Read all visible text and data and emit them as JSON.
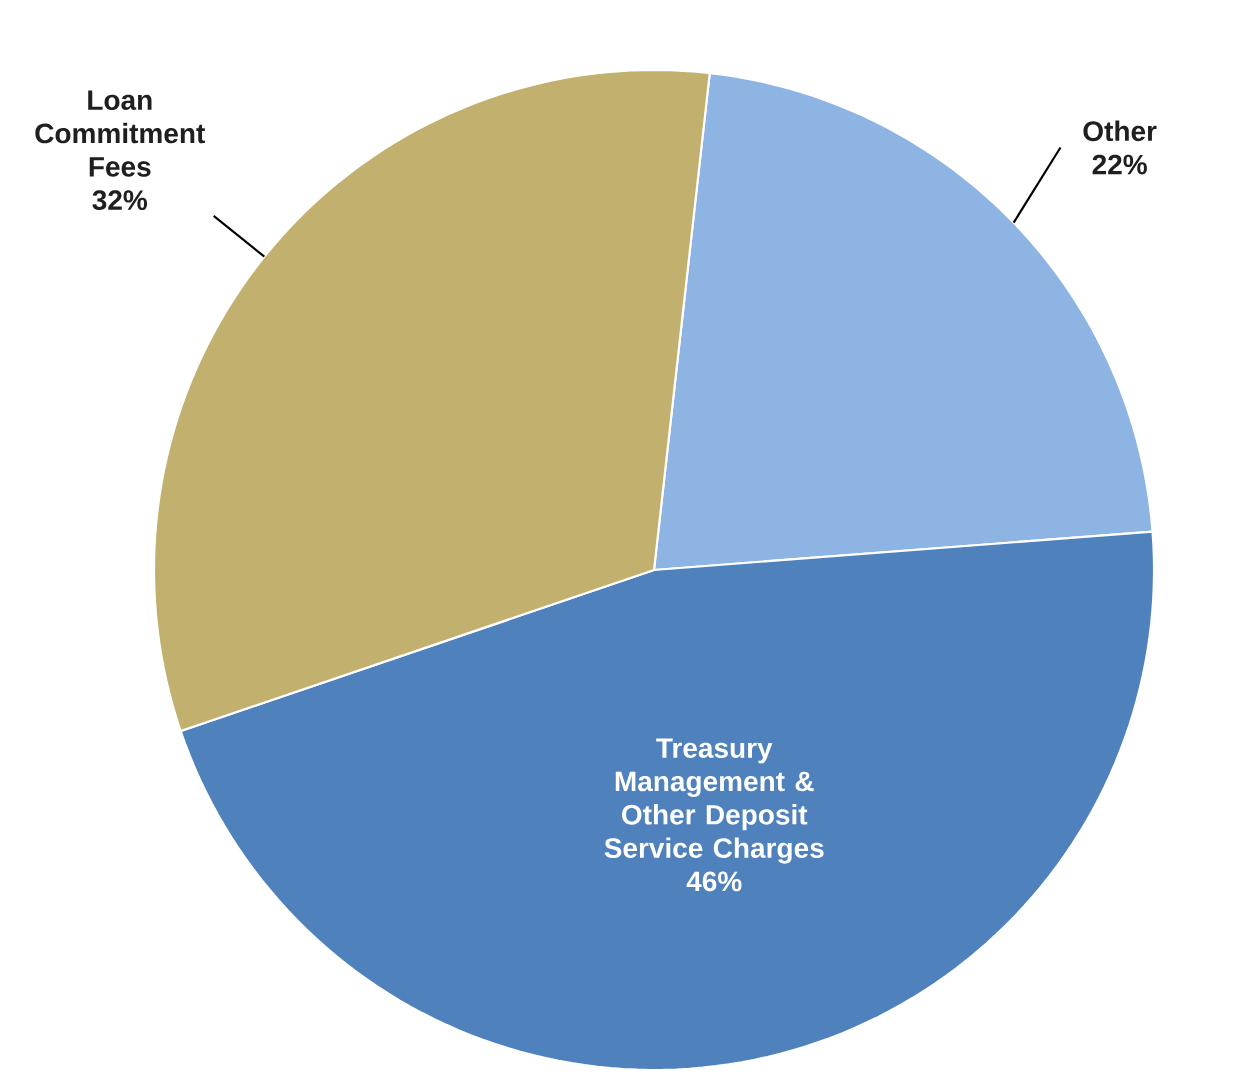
{
  "chart_data": {
    "type": "pie",
    "categories": [
      "Other",
      "Treasury Management & Other Deposit Service Charges",
      "Loan Commitment Fees"
    ],
    "values": [
      22,
      46,
      32
    ],
    "value_labels": [
      "22%",
      "46%",
      "32%"
    ],
    "colors": [
      "#8eb4e3",
      "#4f81bd",
      "#c2b06e"
    ]
  }
}
